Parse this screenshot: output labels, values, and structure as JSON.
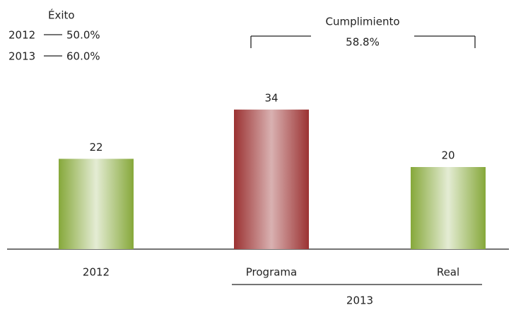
{
  "chart_data": {
    "type": "bar",
    "categories": [
      "2012",
      "Programa",
      "Real"
    ],
    "values": [
      22,
      34,
      20
    ],
    "colors": [
      "#86a83a",
      "#9b3232",
      "#86a83a"
    ],
    "ylim": [
      0,
      40
    ],
    "group": {
      "label": "2013",
      "from": 1,
      "to": 2
    },
    "exito": {
      "title": "Éxito",
      "rows": [
        {
          "year": "2012",
          "value": 50,
          "label": "50.0%"
        },
        {
          "year": "2013",
          "value": 60,
          "label": "60.0%"
        }
      ]
    },
    "cumplimiento": {
      "title": "Cumplimiento",
      "value": 58.8,
      "label": "58.8%"
    }
  }
}
